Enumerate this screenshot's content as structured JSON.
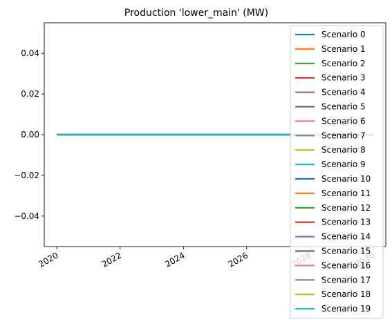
{
  "chart_data": {
    "type": "line",
    "title": "Production 'lower_main' (MW)",
    "xlabel": "",
    "ylabel": "",
    "xlim": [
      2019.6,
      2030.4
    ],
    "ylim": [
      -0.055,
      0.055
    ],
    "x_ticks": [
      2020,
      2022,
      2024,
      2026,
      2028,
      2030
    ],
    "x_tick_labels": [
      "2020",
      "2022",
      "2024",
      "2026",
      "2028",
      "2030"
    ],
    "y_ticks": [
      0.04,
      0.02,
      0.0,
      -0.02,
      -0.04
    ],
    "y_tick_labels": [
      "0.04",
      "0.02",
      "0.00",
      "−0.02",
      "−0.04"
    ],
    "grid": false,
    "legend_position": "right",
    "x": [
      2020,
      2030
    ],
    "series": [
      {
        "name": "Scenario 0",
        "color": "#1f77b4",
        "values": [
          0,
          0
        ]
      },
      {
        "name": "Scenario 1",
        "color": "#ff7f0e",
        "values": [
          0,
          0
        ]
      },
      {
        "name": "Scenario 2",
        "color": "#2ca02c",
        "values": [
          0,
          0
        ]
      },
      {
        "name": "Scenario 3",
        "color": "#d62728",
        "values": [
          0,
          0
        ]
      },
      {
        "name": "Scenario 4",
        "color": "#9467bd",
        "values": [
          0,
          0
        ]
      },
      {
        "name": "Scenario 5",
        "color": "#8c564b",
        "values": [
          0,
          0
        ]
      },
      {
        "name": "Scenario 6",
        "color": "#e377c2",
        "values": [
          0,
          0
        ]
      },
      {
        "name": "Scenario 7",
        "color": "#7f7f7f",
        "values": [
          0,
          0
        ]
      },
      {
        "name": "Scenario 8",
        "color": "#bcbd22",
        "values": [
          0,
          0
        ]
      },
      {
        "name": "Scenario 9",
        "color": "#17becf",
        "values": [
          0,
          0
        ]
      },
      {
        "name": "Scenario 10",
        "color": "#1f77b4",
        "values": [
          0,
          0
        ]
      },
      {
        "name": "Scenario 11",
        "color": "#ff7f0e",
        "values": [
          0,
          0
        ]
      },
      {
        "name": "Scenario 12",
        "color": "#2ca02c",
        "values": [
          0,
          0
        ]
      },
      {
        "name": "Scenario 13",
        "color": "#d62728",
        "values": [
          0,
          0
        ]
      },
      {
        "name": "Scenario 14",
        "color": "#9467bd",
        "values": [
          0,
          0
        ]
      },
      {
        "name": "Scenario 15",
        "color": "#8c564b",
        "values": [
          0,
          0
        ]
      },
      {
        "name": "Scenario 16",
        "color": "#e377c2",
        "values": [
          0,
          0
        ]
      },
      {
        "name": "Scenario 17",
        "color": "#7f7f7f",
        "values": [
          0,
          0
        ]
      },
      {
        "name": "Scenario 18",
        "color": "#bcbd22",
        "values": [
          0,
          0
        ]
      },
      {
        "name": "Scenario 19",
        "color": "#17becf",
        "values": [
          0,
          0
        ]
      }
    ]
  }
}
